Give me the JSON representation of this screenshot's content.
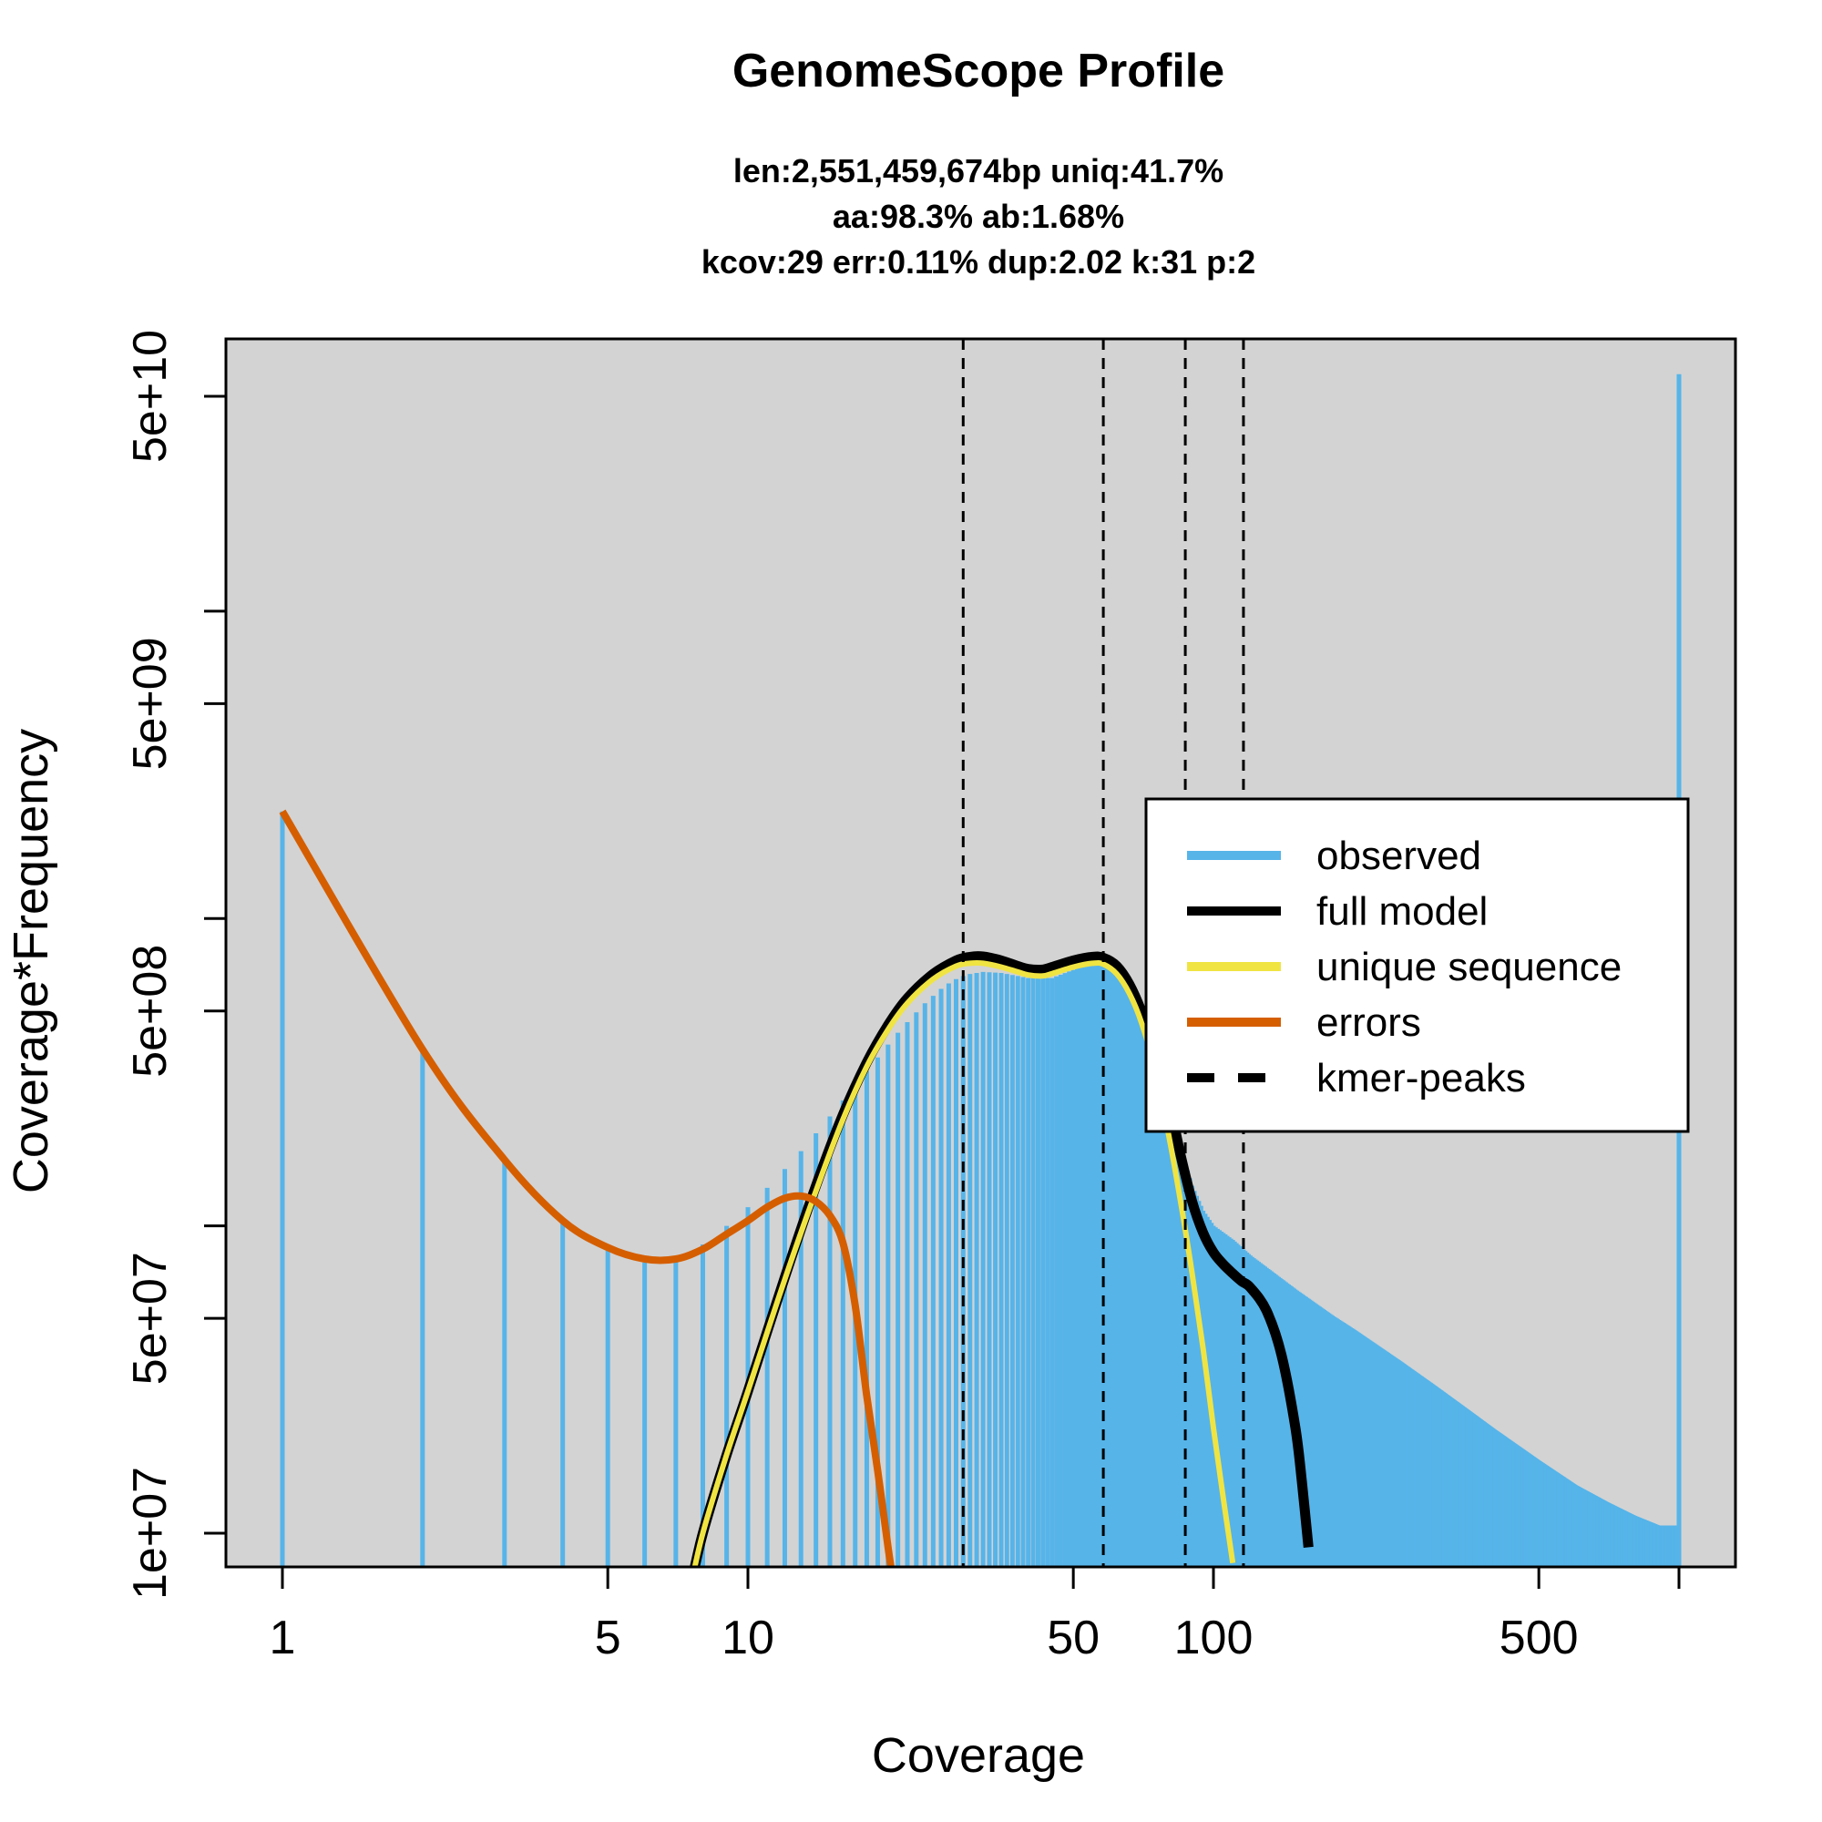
{
  "chart_data": {
    "type": "bar",
    "title": "GenomeScope Profile",
    "subtitle_lines": [
      "len:2,551,459,674bp uniq:41.7%",
      "aa:98.3% ab:1.68%",
      "kcov:29 err:0.11%  dup:2.02  k:31 p:2"
    ],
    "xlabel": "Coverage",
    "ylabel": "Coverage*Frequency",
    "x_scale": "log",
    "y_scale": "log",
    "xlim": [
      1,
      1000
    ],
    "ylim": [
      10000000,
      65000000000
    ],
    "x_ticks": [
      {
        "value": 1,
        "label": "1"
      },
      {
        "value": 5,
        "label": "5"
      },
      {
        "value": 10,
        "label": "10"
      },
      {
        "value": 50,
        "label": "50"
      },
      {
        "value": 100,
        "label": "100"
      },
      {
        "value": 500,
        "label": "500"
      },
      {
        "value": 1000,
        "label": ""
      }
    ],
    "y_ticks": [
      {
        "value": 10000000,
        "label": "1e+07"
      },
      {
        "value": 50000000,
        "label": "5e+07"
      },
      {
        "value": 100000000,
        "label": ""
      },
      {
        "value": 500000000,
        "label": "5e+08"
      },
      {
        "value": 1000000000,
        "label": ""
      },
      {
        "value": 5000000000,
        "label": "5e+09"
      },
      {
        "value": 10000000000,
        "label": ""
      },
      {
        "value": 50000000000,
        "label": "5e+10"
      }
    ],
    "observed": {
      "name": "observed",
      "color": "#56b4e9",
      "x": [
        1,
        2,
        3,
        4,
        5,
        6,
        7,
        8,
        9,
        10,
        11,
        12,
        13,
        14,
        15,
        16,
        17,
        18,
        19,
        20,
        21,
        22,
        23,
        24,
        25,
        26,
        27,
        28,
        29,
        30,
        32,
        35,
        38,
        40,
        45,
        50,
        55,
        58,
        60,
        65,
        70,
        75,
        80,
        85,
        90,
        95,
        100,
        110,
        120,
        130,
        150,
        180,
        200,
        250,
        300,
        350,
        400,
        500,
        600,
        700,
        800,
        900,
        1000
      ],
      "y": [
        2230000000,
        374000000,
        164000000,
        104000000,
        83000000,
        76000000,
        78000000,
        87000000,
        100000000,
        115000000,
        133000000,
        153000000,
        175000000,
        200000000,
        227000000,
        256000000,
        287000000,
        319000000,
        353000000,
        389000000,
        425000000,
        460000000,
        495000000,
        530000000,
        560000000,
        590000000,
        615000000,
        635000000,
        650000000,
        660000000,
        670000000,
        665000000,
        650000000,
        640000000,
        640000000,
        680000000,
        720000000,
        730000000,
        720000000,
        650000000,
        520000000,
        380000000,
        260000000,
        180000000,
        135000000,
        112000000,
        100000000,
        90000000,
        80000000,
        73000000,
        62000000,
        51000000,
        46000000,
        36500000,
        30000000,
        25300000,
        21800000,
        17200000,
        14300000,
        12600000,
        11400000,
        10600000,
        59000000000
      ]
    },
    "full_model": {
      "name": "full model",
      "color": "#000000",
      "x": [
        7.5,
        8,
        9,
        10,
        12,
        14,
        16,
        18,
        20,
        22,
        25,
        28,
        30,
        32,
        35,
        38,
        40,
        43,
        45,
        50,
        55,
        58,
        62,
        66,
        70,
        75,
        80,
        85,
        90,
        95,
        100,
        105,
        110,
        115,
        120,
        130,
        140,
        150,
        155,
        160
      ],
      "y": [
        6500000,
        10000000,
        18000000,
        29000000,
        68000000,
        135000000,
        230000000,
        340000000,
        450000000,
        550000000,
        660000000,
        730000000,
        750000000,
        752000000,
        730000000,
        700000000,
        685000000,
        682000000,
        695000000,
        730000000,
        750000000,
        745000000,
        700000000,
        610000000,
        500000000,
        370000000,
        260000000,
        170000000,
        120000000,
        95000000,
        82000000,
        75000000,
        70000000,
        66000000,
        63000000,
        53000000,
        38000000,
        22000000,
        14500000,
        9000000
      ]
    },
    "unique_sequence": {
      "name": "unique sequence",
      "color": "#f0e442",
      "x": [
        7.5,
        8,
        9,
        10,
        12,
        14,
        16,
        18,
        20,
        22,
        25,
        28,
        30,
        32,
        35,
        38,
        40,
        43,
        45,
        50,
        55,
        58,
        62,
        66,
        70,
        75,
        80,
        85,
        90,
        95,
        100,
        105,
        110
      ],
      "y": [
        6500000,
        10000000,
        18000000,
        29000000,
        67000000,
        130000000,
        222000000,
        330000000,
        435000000,
        530000000,
        635000000,
        700000000,
        715000000,
        715000000,
        695000000,
        670000000,
        655000000,
        650000000,
        662000000,
        695000000,
        715000000,
        710000000,
        660000000,
        570000000,
        460000000,
        320000000,
        200000000,
        120000000,
        70000000,
        40000000,
        22000000,
        13000000,
        8000000
      ]
    },
    "errors": {
      "name": "errors",
      "color": "#d55e00",
      "x": [
        1,
        2,
        3,
        4,
        5,
        6,
        7,
        8,
        9,
        10,
        11,
        12,
        13,
        14,
        15,
        16,
        17,
        18,
        19,
        20,
        20.5
      ],
      "y": [
        2230000000,
        375000000,
        164000000,
        104000000,
        85000000,
        78000000,
        78000000,
        84000000,
        94000000,
        104000000,
        115000000,
        123000000,
        125000000,
        120000000,
        108000000,
        88000000,
        55000000,
        28000000,
        16000000,
        9000000,
        7000000
      ]
    },
    "kmer_peaks": {
      "name": "kmer-peaks",
      "x": [
        29,
        58,
        87,
        116
      ]
    },
    "legend": {
      "position": "right",
      "entries": [
        "observed",
        "full model",
        "unique sequence",
        "errors",
        "kmer-peaks"
      ]
    },
    "background_color": "#d3d3d3"
  }
}
